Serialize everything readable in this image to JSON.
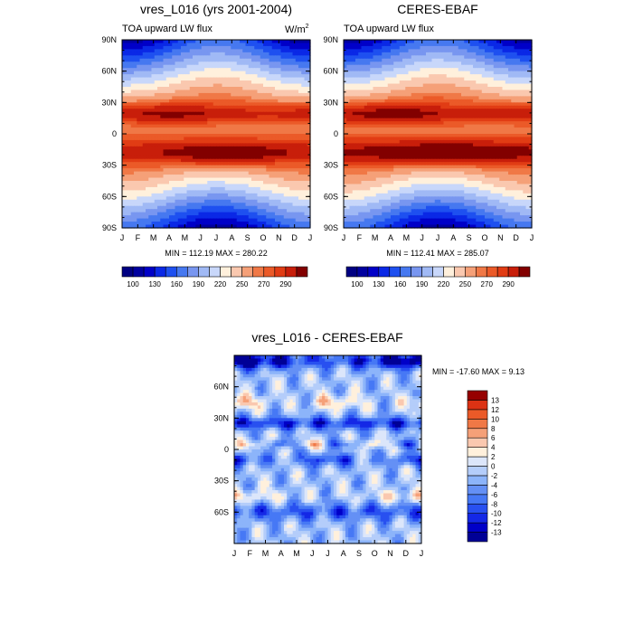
{
  "chart_data": [
    {
      "type": "heatmap",
      "title": "vres_L016 (yrs 2001-2004)",
      "subtitle_left": "TOA upward LW flux",
      "units_base": "W/m",
      "units_exp": "2",
      "x_ticks": [
        "J",
        "F",
        "M",
        "A",
        "M",
        "J",
        "J",
        "A",
        "S",
        "O",
        "N",
        "D",
        "J"
      ],
      "y_ticks": [
        "90N",
        "60N",
        "30N",
        "0",
        "30S",
        "60S",
        "90S"
      ],
      "minmax": "MIN = 112.19 MAX = 280.22",
      "min": 112.19,
      "max": 280.22,
      "colorbar": {
        "levels": [
          90,
          100,
          115,
          130,
          145,
          160,
          175,
          190,
          205,
          220,
          235,
          250,
          260,
          270,
          280,
          290
        ],
        "labels": [
          "100",
          "130",
          "160",
          "190",
          "220",
          "250",
          "270",
          "290"
        ],
        "colors": [
          "#000082",
          "#00009f",
          "#0000c8",
          "#0a28e6",
          "#1e50f0",
          "#4678f0",
          "#7896f0",
          "#a0b9f5",
          "#c8d7fa",
          "#fff0dc",
          "#fac8af",
          "#f5a078",
          "#f07846",
          "#eb5a28",
          "#e13c14",
          "#c81e0a",
          "#820000"
        ]
      }
    },
    {
      "type": "heatmap",
      "title": "CERES-EBAF",
      "subtitle_left": "TOA upward LW flux",
      "x_ticks": [
        "J",
        "F",
        "M",
        "A",
        "M",
        "J",
        "J",
        "A",
        "S",
        "O",
        "N",
        "D",
        "J"
      ],
      "y_ticks": [
        "90N",
        "60N",
        "30N",
        "0",
        "30S",
        "60S",
        "90S"
      ],
      "minmax": "MIN = 112.41 MAX = 285.07",
      "min": 112.41,
      "max": 285.07,
      "colorbar": {
        "levels": [
          90,
          100,
          115,
          130,
          145,
          160,
          175,
          190,
          205,
          220,
          235,
          250,
          260,
          270,
          280,
          290
        ],
        "labels": [
          "100",
          "130",
          "160",
          "190",
          "220",
          "250",
          "270",
          "290"
        ],
        "colors": [
          "#000082",
          "#00009f",
          "#0000c8",
          "#0a28e6",
          "#1e50f0",
          "#4678f0",
          "#7896f0",
          "#a0b9f5",
          "#c8d7fa",
          "#fff0dc",
          "#fac8af",
          "#f5a078",
          "#f07846",
          "#eb5a28",
          "#e13c14",
          "#c81e0a",
          "#820000"
        ]
      }
    },
    {
      "type": "heatmap",
      "title": "vres_L016 - CERES-EBAF",
      "x_ticks": [
        "J",
        "F",
        "M",
        "A",
        "M",
        "J",
        "J",
        "A",
        "S",
        "O",
        "N",
        "D",
        "J"
      ],
      "y_ticks": [
        "60N",
        "30N",
        "0",
        "30S",
        "60S"
      ],
      "minmax": "MIN = -17.60 MAX =   9.13",
      "min": -17.6,
      "max": 9.13,
      "colorbar": {
        "levels": [
          -13,
          -12,
          -10,
          -8,
          -6,
          -4,
          -2,
          0,
          2,
          4,
          6,
          8,
          10,
          12,
          13
        ],
        "labels": [
          "-13",
          "-12",
          "-10",
          "-8",
          "-6",
          "-4",
          "-2",
          "0",
          "2",
          "4",
          "6",
          "8",
          "10",
          "12",
          "13"
        ],
        "colors": [
          "#000096",
          "#0000c8",
          "#1428e6",
          "#2850f0",
          "#4678f5",
          "#6490f5",
          "#8cb4fa",
          "#b4cdfa",
          "#dce6fa",
          "#fff0dc",
          "#fac8af",
          "#f5a078",
          "#f07846",
          "#eb5a28",
          "#dc3214",
          "#960000"
        ]
      }
    }
  ]
}
